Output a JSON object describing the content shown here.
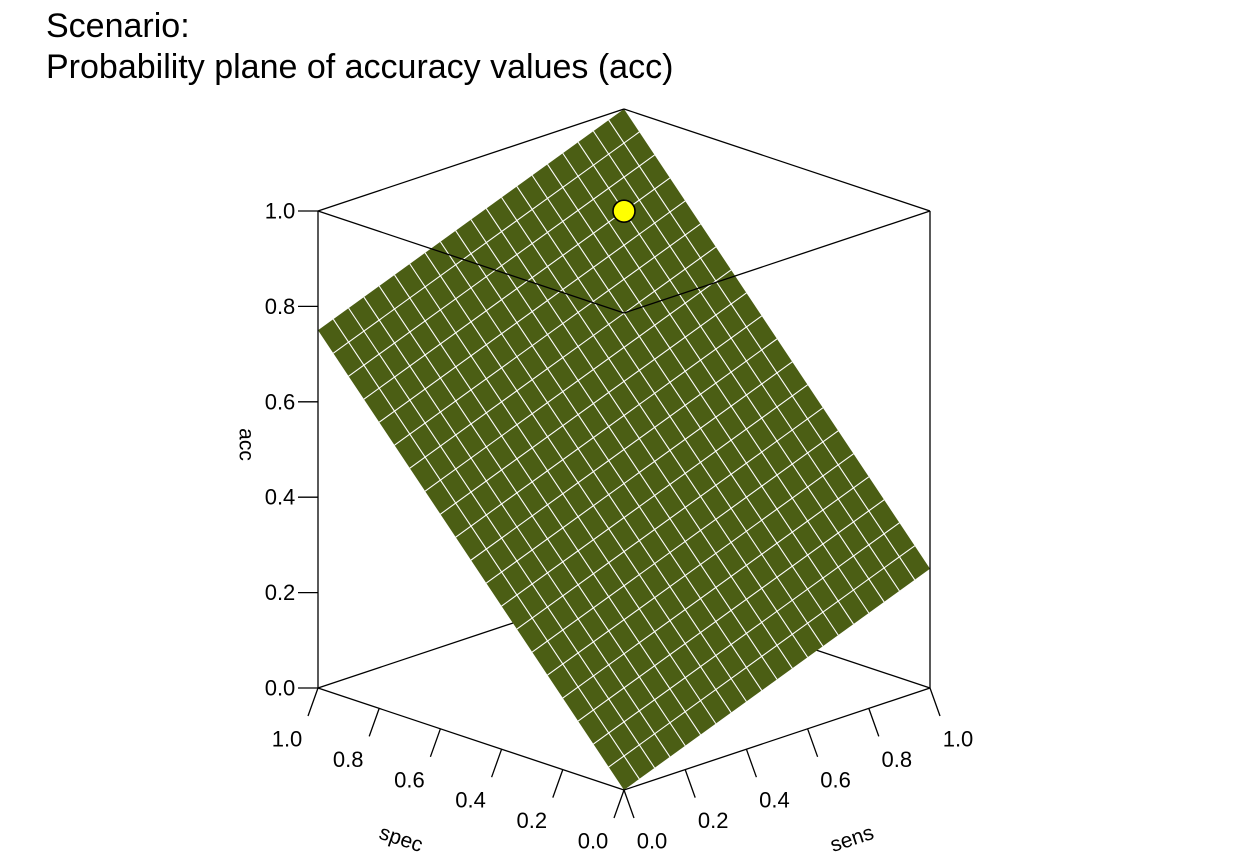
{
  "chart_data": {
    "type": "surface3d",
    "title": [
      "Scenario:",
      "Probability plane of accuracy values (acc)"
    ],
    "xlabel": "sens",
    "ylabel": "spec",
    "zlabel": "acc",
    "xlim": [
      0,
      1
    ],
    "ylim": [
      0,
      1
    ],
    "zlim": [
      0,
      1
    ],
    "x_ticks": [
      "0.0",
      "0.2",
      "0.4",
      "0.6",
      "0.8",
      "1.0"
    ],
    "y_ticks": [
      "0.0",
      "0.2",
      "0.4",
      "0.6",
      "0.8",
      "1.0"
    ],
    "z_ticks": [
      "0.0",
      "0.2",
      "0.4",
      "0.6",
      "0.8",
      "1.0"
    ],
    "surface": {
      "formula": "acc = 0.25 * sens + 0.75 * spec",
      "grid_cells": 20,
      "fill_color": "#4b5e14",
      "grid_color": "#ffffff",
      "corner_values": [
        {
          "sens": 0,
          "spec": 0,
          "acc": 0.0
        },
        {
          "sens": 1,
          "spec": 0,
          "acc": 0.25
        },
        {
          "sens": 0,
          "spec": 1,
          "acc": 0.75
        },
        {
          "sens": 1,
          "spec": 1,
          "acc": 1.0
        }
      ]
    },
    "points": [
      {
        "sens": 0.85,
        "spec": 0.85,
        "acc": 0.85,
        "color": "#ffff00"
      }
    ]
  }
}
